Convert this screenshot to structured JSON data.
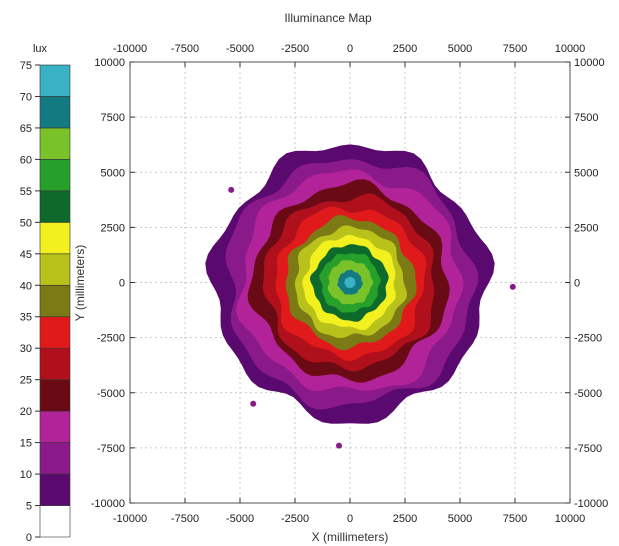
{
  "chart_data": {
    "type": "heatmap",
    "title": "Illuminance Map",
    "xlabel": "X (millimeters)",
    "ylabel": "Y (millimeters)",
    "xlim": [
      -10000,
      10000
    ],
    "ylim": [
      -10000,
      10000
    ],
    "x_ticks": [
      "-10000",
      "-7500",
      "-5000",
      "-2500",
      "0",
      "2500",
      "5000",
      "7500",
      "10000"
    ],
    "y_ticks": [
      "10000",
      "7500",
      "5000",
      "2500",
      "0",
      "-2500",
      "-5000",
      "-7500",
      "-10000"
    ],
    "grid": true,
    "center": [
      0,
      0
    ],
    "colorbar": {
      "unit": "lux",
      "range": [
        0,
        75
      ],
      "tick_labels": [
        "75",
        "70",
        "65",
        "60",
        "55",
        "50",
        "45",
        "40",
        "35",
        "30",
        "25",
        "20",
        "15",
        "10",
        "5",
        "0"
      ],
      "bands": [
        {
          "from": 0,
          "to": 5,
          "color": "#ffffff"
        },
        {
          "from": 5,
          "to": 10,
          "color": "#5a0a6e"
        },
        {
          "from": 10,
          "to": 15,
          "color": "#8a1a8a"
        },
        {
          "from": 15,
          "to": 20,
          "color": "#b2239a"
        },
        {
          "from": 20,
          "to": 25,
          "color": "#6a0a14"
        },
        {
          "from": 25,
          "to": 30,
          "color": "#b00f1c"
        },
        {
          "from": 30,
          "to": 35,
          "color": "#e01a1a"
        },
        {
          "from": 35,
          "to": 40,
          "color": "#7c7a14"
        },
        {
          "from": 40,
          "to": 45,
          "color": "#b9c21a"
        },
        {
          "from": 45,
          "to": 50,
          "color": "#f2f01e"
        },
        {
          "from": 50,
          "to": 55,
          "color": "#0d6a2a"
        },
        {
          "from": 55,
          "to": 60,
          "color": "#26a02a"
        },
        {
          "from": 60,
          "to": 65,
          "color": "#7ac22a"
        },
        {
          "from": 65,
          "to": 70,
          "color": "#137a82"
        },
        {
          "from": 70,
          "to": 75,
          "color": "#3ab2c6"
        }
      ]
    },
    "contours": [
      {
        "lux": 5,
        "radius_mm": 6200
      },
      {
        "lux": 10,
        "radius_mm": 5600
      },
      {
        "lux": 15,
        "radius_mm": 5000
      },
      {
        "lux": 20,
        "radius_mm": 4400
      },
      {
        "lux": 25,
        "radius_mm": 3900
      },
      {
        "lux": 30,
        "radius_mm": 3400
      },
      {
        "lux": 35,
        "radius_mm": 2900
      },
      {
        "lux": 40,
        "radius_mm": 2500
      },
      {
        "lux": 45,
        "radius_mm": 2100
      },
      {
        "lux": 50,
        "radius_mm": 1700
      },
      {
        "lux": 55,
        "radius_mm": 1350
      },
      {
        "lux": 60,
        "radius_mm": 1000
      },
      {
        "lux": 65,
        "radius_mm": 550
      },
      {
        "lux": 70,
        "radius_mm": 250
      }
    ],
    "stray_spots": [
      {
        "x": -5400,
        "y": 4200,
        "lux": 10
      },
      {
        "x": 7400,
        "y": -200,
        "lux": 10
      },
      {
        "x": -4400,
        "y": -5500,
        "lux": 10
      },
      {
        "x": -500,
        "y": -7400,
        "lux": 10
      }
    ]
  }
}
